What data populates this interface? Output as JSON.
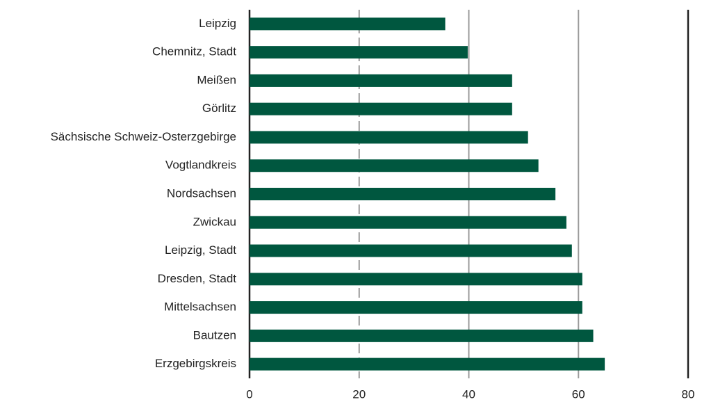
{
  "chart_data": {
    "type": "bar",
    "orientation": "horizontal",
    "categories": [
      "Leipzig",
      "Chemnitz, Stadt",
      "Meißen",
      "Görlitz",
      "Sächsische Schweiz-Osterzgebirge",
      "Vogtlandkreis",
      "Nordsachsen",
      "Zwickau",
      "Leipzig, Stadt",
      "Dresden, Stadt",
      "Mittelsachsen",
      "Bautzen",
      "Erzgebirgskreis"
    ],
    "values": [
      35.7,
      39.8,
      47.9,
      47.9,
      50.8,
      52.7,
      55.8,
      57.8,
      58.8,
      60.7,
      60.7,
      62.7,
      64.8
    ],
    "color": "#00573f",
    "xlim": [
      0,
      80
    ],
    "xticks": [
      0,
      20,
      40,
      60,
      80
    ],
    "grid": true
  }
}
